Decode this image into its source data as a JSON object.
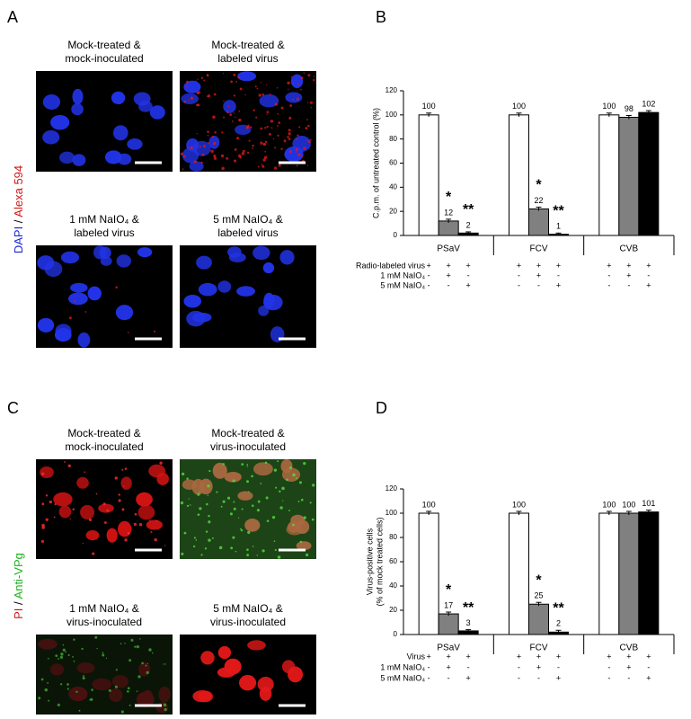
{
  "figure": {
    "panel_letters": [
      "A",
      "B",
      "C",
      "D"
    ],
    "image_panels": [
      {
        "side_label": [
          "DAPI",
          " / ",
          "Alexa 594"
        ],
        "image_titles": [
          [
            "Mock-treated &",
            "mock-inoculated"
          ],
          [
            "Mock-treated &",
            "labeled virus"
          ],
          [
            "1 mM NaIO₄ &",
            "labeled virus"
          ],
          [
            "5 mM NaIO₄ &",
            "labeled virus"
          ]
        ]
      },
      {
        "side_label": [
          "PI",
          " / ",
          "Anti-VPg"
        ],
        "image_titles": [
          [
            "Mock-treated &",
            "mock-inoculated"
          ],
          [
            "Mock-treated &",
            "virus-inoculated"
          ],
          [
            "1 mM NaIO₄ &",
            "virus-inoculated"
          ],
          [
            "5 mM NaIO₄ &",
            "virus-inoculated"
          ]
        ]
      }
    ]
  },
  "chart_data": [
    {
      "type": "bar",
      "ylabel": [
        "C.p.m. of untreated control (%)"
      ],
      "categories": [
        "PSaV",
        "FCV",
        "CVB"
      ],
      "series": [
        {
          "color": "#ffffff",
          "values": [
            100,
            100,
            100
          ],
          "errors": [
            1.5,
            1.5,
            1.5
          ]
        },
        {
          "color": "#808080",
          "values": [
            12,
            22,
            98
          ],
          "errors": [
            1.5,
            1.5,
            1.5
          ],
          "significance": [
            "*",
            "*",
            null
          ]
        },
        {
          "color": "#000000",
          "values": [
            2,
            1,
            102
          ],
          "errors": [
            1,
            1,
            1.5
          ],
          "significance": [
            "**",
            "**",
            null
          ]
        }
      ],
      "ylim": [
        0,
        120
      ],
      "yticks": [
        0,
        20,
        40,
        60,
        80,
        100,
        120
      ],
      "conditions": [
        {
          "label": "Radio-labeled virus",
          "signs": [
            [
              "+",
              "+",
              "+"
            ],
            [
              "+",
              "+",
              "+"
            ],
            [
              "+",
              "+",
              "+"
            ]
          ]
        },
        {
          "label": "1 mM NaIO₄",
          "signs": [
            [
              "-",
              "+",
              "-"
            ],
            [
              "-",
              "+",
              "-"
            ],
            [
              "-",
              "+",
              "-"
            ]
          ]
        },
        {
          "label": "5 mM NaIO₄",
          "signs": [
            [
              "-",
              "-",
              "+"
            ],
            [
              "-",
              "-",
              "+"
            ],
            [
              "-",
              "-",
              "+"
            ]
          ]
        }
      ]
    },
    {
      "type": "bar",
      "ylabel": [
        "Virus-positive cells",
        "(% of mock treated cells)"
      ],
      "categories": [
        "PSaV",
        "FCV",
        "CVB"
      ],
      "series": [
        {
          "color": "#ffffff",
          "values": [
            100,
            100,
            100
          ],
          "errors": [
            1.5,
            1.5,
            1.5
          ]
        },
        {
          "color": "#808080",
          "values": [
            17,
            25,
            100
          ],
          "errors": [
            1.5,
            1.5,
            1.5
          ],
          "significance": [
            "*",
            "*",
            null
          ]
        },
        {
          "color": "#000000",
          "values": [
            3,
            2,
            101
          ],
          "errors": [
            1,
            1.5,
            1.5
          ],
          "significance": [
            "**",
            "**",
            null
          ]
        }
      ],
      "ylim": [
        0,
        120
      ],
      "yticks": [
        0,
        20,
        40,
        60,
        80,
        100,
        120
      ],
      "conditions": [
        {
          "label": "Virus",
          "signs": [
            [
              "+",
              "+",
              "+"
            ],
            [
              "+",
              "+",
              "+"
            ],
            [
              "+",
              "+",
              "+"
            ]
          ]
        },
        {
          "label": "1 mM NaIO₄",
          "signs": [
            [
              "-",
              "+",
              "-"
            ],
            [
              "-",
              "+",
              "-"
            ],
            [
              "-",
              "+",
              "-"
            ]
          ]
        },
        {
          "label": "5 mM NaIO₄",
          "signs": [
            [
              "-",
              "-",
              "+"
            ],
            [
              "-",
              "-",
              "+"
            ],
            [
              "-",
              "-",
              "+"
            ]
          ]
        }
      ]
    }
  ]
}
